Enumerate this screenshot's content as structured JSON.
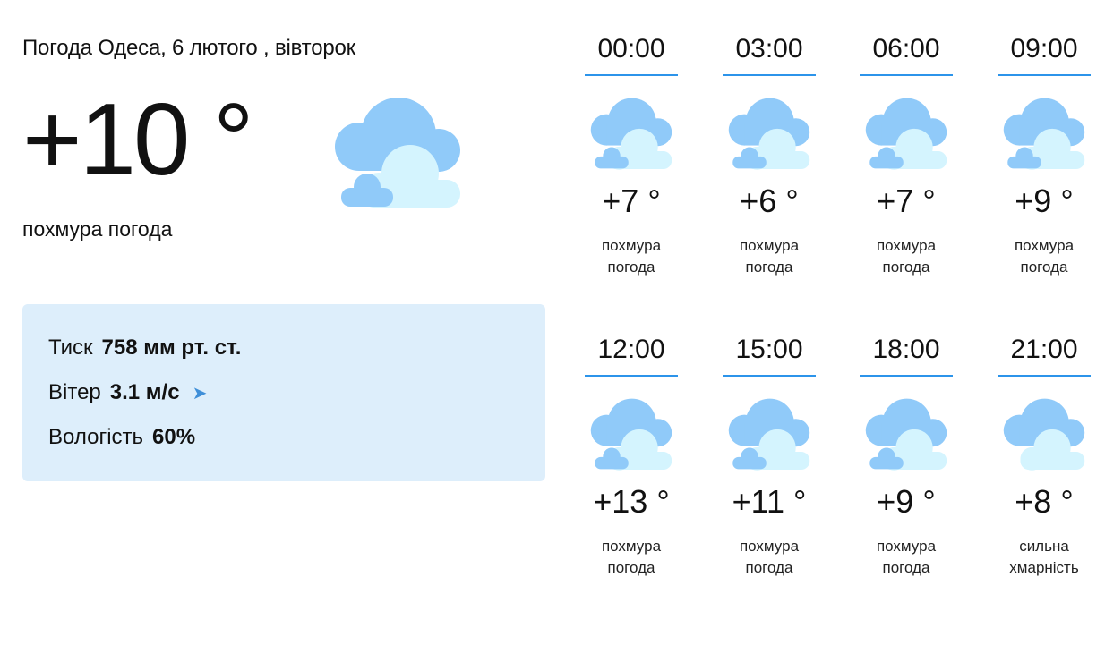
{
  "header": {
    "title": "Погода Одеса, 6 лютого , вівторок"
  },
  "current": {
    "temperature": "+10 °",
    "description": "похмура погода",
    "icon": "cloudy-icon"
  },
  "details": {
    "pressure_label": "Тиск",
    "pressure_value": "758 мм рт. ст.",
    "wind_label": "Вітер",
    "wind_value": "3.1 м/с",
    "wind_direction_icon": "arrow-right-icon",
    "humidity_label": "Вологість",
    "humidity_value": "60%"
  },
  "colors": {
    "cloud_back": "#90caf9",
    "cloud_front": "#d4f4fe",
    "accent_line": "#2c94ea",
    "panel_bg": "#ddeefb"
  },
  "hourly": [
    {
      "time": "00:00",
      "temp": "+7 °",
      "desc1": "похмура",
      "desc2": "погода",
      "icon": "cloudy-icon"
    },
    {
      "time": "03:00",
      "temp": "+6 °",
      "desc1": "похмура",
      "desc2": "погода",
      "icon": "cloudy-icon"
    },
    {
      "time": "06:00",
      "temp": "+7 °",
      "desc1": "похмура",
      "desc2": "погода",
      "icon": "cloudy-icon"
    },
    {
      "time": "09:00",
      "temp": "+9 °",
      "desc1": "похмура",
      "desc2": "погода",
      "icon": "cloudy-icon"
    },
    {
      "time": "12:00",
      "temp": "+13 °",
      "desc1": "похмура",
      "desc2": "погода",
      "icon": "cloudy-icon"
    },
    {
      "time": "15:00",
      "temp": "+11 °",
      "desc1": "похмура",
      "desc2": "погода",
      "icon": "cloudy-icon"
    },
    {
      "time": "18:00",
      "temp": "+9 °",
      "desc1": "похмура",
      "desc2": "погода",
      "icon": "cloudy-icon"
    },
    {
      "time": "21:00",
      "temp": "+8 °",
      "desc1": "сильна",
      "desc2": "хмарність",
      "icon": "overcast-icon"
    }
  ]
}
